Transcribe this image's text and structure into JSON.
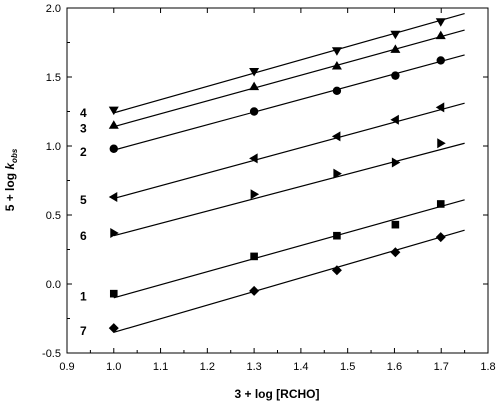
{
  "chart_data": {
    "type": "scatter",
    "title": "",
    "xlabel": "3 + log [RCHO]",
    "ylabel_main": "5 + log ",
    "ylabel_k": "k",
    "ylabel_sub": "obs",
    "xlim": [
      0.9,
      1.8
    ],
    "ylim": [
      -0.5,
      2.0
    ],
    "x_ticks": [
      "0.9",
      "1.0",
      "1.1",
      "1.2",
      "1.3",
      "1.4",
      "1.5",
      "1.6",
      "1.7",
      "1.8"
    ],
    "y_ticks": [
      "-0.5",
      "0.0",
      "0.5",
      "1.0",
      "1.5",
      "2.0"
    ],
    "grid": false,
    "series": [
      {
        "name": "4",
        "marker": "triangle-down",
        "x": [
          1.0,
          1.3,
          1.477,
          1.602,
          1.699
        ],
        "y": [
          1.26,
          1.54,
          1.69,
          1.81,
          1.9
        ],
        "fit": {
          "x": [
            1.0,
            1.75
          ],
          "y": [
            1.24,
            1.96
          ]
        }
      },
      {
        "name": "3",
        "marker": "triangle-up",
        "x": [
          1.0,
          1.3,
          1.477,
          1.602,
          1.699
        ],
        "y": [
          1.15,
          1.43,
          1.58,
          1.7,
          1.8
        ],
        "fit": {
          "x": [
            1.0,
            1.75
          ],
          "y": [
            1.14,
            1.84
          ]
        }
      },
      {
        "name": "2",
        "marker": "circle",
        "x": [
          1.0,
          1.3,
          1.477,
          1.602,
          1.699
        ],
        "y": [
          0.98,
          1.25,
          1.4,
          1.51,
          1.62
        ],
        "fit": {
          "x": [
            1.0,
            1.75
          ],
          "y": [
            0.97,
            1.66
          ]
        }
      },
      {
        "name": "5",
        "marker": "triangle-left",
        "x": [
          1.0,
          1.3,
          1.477,
          1.602,
          1.699
        ],
        "y": [
          0.63,
          0.91,
          1.07,
          1.19,
          1.28
        ],
        "fit": {
          "x": [
            1.0,
            1.75
          ],
          "y": [
            0.62,
            1.31
          ]
        }
      },
      {
        "name": "6",
        "marker": "triangle-right",
        "x": [
          1.0,
          1.3,
          1.477,
          1.602,
          1.699
        ],
        "y": [
          0.37,
          0.65,
          0.8,
          0.88,
          1.02
        ],
        "fit": {
          "x": [
            1.0,
            1.75
          ],
          "y": [
            0.35,
            1.02
          ]
        }
      },
      {
        "name": "1",
        "marker": "square",
        "x": [
          1.0,
          1.3,
          1.477,
          1.602,
          1.699
        ],
        "y": [
          -0.07,
          0.2,
          0.35,
          0.43,
          0.58
        ],
        "fit": {
          "x": [
            1.0,
            1.75
          ],
          "y": [
            -0.1,
            0.61
          ]
        }
      },
      {
        "name": "7",
        "marker": "diamond",
        "x": [
          1.0,
          1.3,
          1.477,
          1.602,
          1.699
        ],
        "y": [
          -0.32,
          -0.05,
          0.1,
          0.23,
          0.34
        ],
        "fit": {
          "x": [
            1.0,
            1.75
          ],
          "y": [
            -0.35,
            0.39
          ]
        }
      }
    ]
  }
}
